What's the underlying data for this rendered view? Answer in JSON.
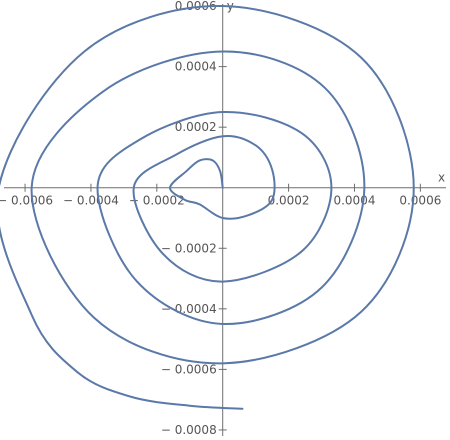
{
  "chart_data": {
    "type": "line",
    "title": "",
    "xlabel": "x",
    "ylabel": "y",
    "xlim": [
      -0.00067,
      0.00069
    ],
    "ylim": [
      -0.00082,
      0.00062
    ],
    "x_ticks": [
      -0.0006,
      -0.0004,
      -0.0002,
      0.0002,
      0.0004,
      0.0006
    ],
    "y_ticks": [
      -0.0008,
      -0.0006,
      -0.0004,
      -0.0002,
      0.0002,
      0.0004,
      0.0006
    ],
    "x_tick_labels": [
      "− 0.0006",
      "− 0.0004",
      "− 0.0002",
      "0.0002",
      "0.0004",
      "0.0006"
    ],
    "y_tick_labels": [
      "− 0.0008",
      "− 0.0006",
      "− 0.0004",
      "− 0.0002",
      "0.0002",
      "0.0004",
      "0.0006"
    ],
    "grid": false,
    "series": [
      {
        "color": "#5b79a8",
        "points": [
          [
            0.0,
            0.0
          ],
          [
            -8e-06,
            5.5e-05
          ],
          [
            -3e-05,
            9e-05
          ],
          [
            -7e-05,
            9e-05
          ],
          [
            -0.00011,
            5.5e-05
          ],
          [
            -0.00016,
            0.0
          ],
          [
            -0.000115,
            -4e-05
          ],
          [
            -7e-05,
            -5.5e-05
          ],
          [
            0.0,
            -0.0001
          ],
          [
            8e-05,
            -9e-05
          ],
          [
            0.00015,
            -4e-05
          ],
          [
            0.00015,
            6e-05
          ],
          [
            0.0001,
            0.00014
          ],
          [
            0.0,
            0.00017
          ],
          [
            -0.00014,
            0.00011
          ],
          [
            -0.00027,
            0.0
          ],
          [
            -0.00018,
            -0.00022
          ],
          [
            0.0,
            -0.00031
          ],
          [
            0.00024,
            -0.00021
          ],
          [
            0.00033,
            0.0
          ],
          [
            0.00024,
            0.00018
          ],
          [
            0.0,
            0.00025
          ],
          [
            -0.00025,
            0.00016
          ],
          [
            -0.00038,
            0.0
          ],
          [
            -0.00026,
            -0.00031
          ],
          [
            0.0,
            -0.00045
          ],
          [
            0.0003,
            -0.00033
          ],
          [
            0.00043,
            0.0
          ],
          [
            0.00031,
            0.00033
          ],
          [
            0.0,
            0.00045
          ],
          [
            -0.00036,
            0.00032
          ],
          [
            -0.00058,
            0.0
          ],
          [
            -0.00039,
            -0.00043
          ],
          [
            0.0,
            -0.00058
          ],
          [
            0.00042,
            -0.00041
          ],
          [
            0.00058,
            0.0
          ],
          [
            0.00042,
            0.00043
          ],
          [
            0.0,
            0.0006
          ],
          [
            -0.00042,
            0.00045
          ],
          [
            -0.00068,
            0.0
          ],
          [
            -0.00058,
            -0.00042
          ],
          [
            -0.00044,
            -0.00061
          ],
          [
            -0.00028,
            -0.00069
          ],
          [
            -0.0001,
            -0.00072
          ],
          [
            6e-05,
            -0.00073
          ]
        ]
      }
    ]
  }
}
